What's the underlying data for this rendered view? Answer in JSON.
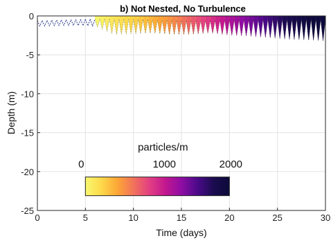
{
  "chart_data": {
    "type": "heatmap",
    "title": "b) Not Nested, No Turbulence",
    "xlabel": "Time (days)",
    "ylabel": "Depth (m)",
    "xlim": [
      0,
      30
    ],
    "ylim": [
      -25,
      0
    ],
    "xticks": [
      "0",
      "5",
      "10",
      "15",
      "20",
      "25",
      "30"
    ],
    "yticks": [
      "0",
      "-5",
      "-10",
      "-15",
      "-20",
      "-25"
    ],
    "grid": true,
    "colorbar": {
      "label": "particles/m",
      "ticks": [
        "0",
        "1000",
        "2000"
      ],
      "range": [
        0,
        2000
      ],
      "placement": "inside-bottom-left",
      "colormap": [
        "#f9f871",
        "#fdd94a",
        "#fca636",
        "#f2735a",
        "#e23f83",
        "#c2178f",
        "#8f0da4",
        "#4b0a8a",
        "#1b0c50",
        "#0c0a3a"
      ]
    },
    "series": [
      {
        "name": "",
        "cycle_days": 0.5,
        "points": [
          {
            "t": 0.5,
            "depth_top": -0.6,
            "depth_bottom": -1.3,
            "value": 0
          },
          {
            "t": 3,
            "depth_top": -0.5,
            "depth_bottom": -1.2,
            "value": 0
          },
          {
            "t": 6,
            "depth_top": -0.4,
            "depth_bottom": -1.3,
            "value": 0
          },
          {
            "t": 8,
            "depth_top": -0.4,
            "depth_bottom": -2.4,
            "value": 150
          },
          {
            "t": 10,
            "depth_top": -0.4,
            "depth_bottom": -2.3,
            "value": 250
          },
          {
            "t": 12,
            "depth_top": -0.5,
            "depth_bottom": -2.2,
            "value": 400
          },
          {
            "t": 14,
            "depth_top": -0.6,
            "depth_bottom": -2.4,
            "value": 550
          },
          {
            "t": 16,
            "depth_top": -0.6,
            "depth_bottom": -2.4,
            "value": 750
          },
          {
            "t": 18,
            "depth_top": -0.6,
            "depth_bottom": -2.2,
            "value": 950
          },
          {
            "t": 20,
            "depth_top": -0.5,
            "depth_bottom": -2.5,
            "value": 1200
          },
          {
            "t": 22,
            "depth_top": -0.5,
            "depth_bottom": -2.6,
            "value": 1400
          },
          {
            "t": 24,
            "depth_top": -0.4,
            "depth_bottom": -2.8,
            "value": 1600
          },
          {
            "t": 26,
            "depth_top": -0.4,
            "depth_bottom": -3.0,
            "value": 1800
          },
          {
            "t": 28,
            "depth_top": -0.4,
            "depth_bottom": -3.1,
            "value": 1950
          },
          {
            "t": 30,
            "depth_top": -0.4,
            "depth_bottom": -3.2,
            "value": 2000
          }
        ]
      }
    ]
  }
}
